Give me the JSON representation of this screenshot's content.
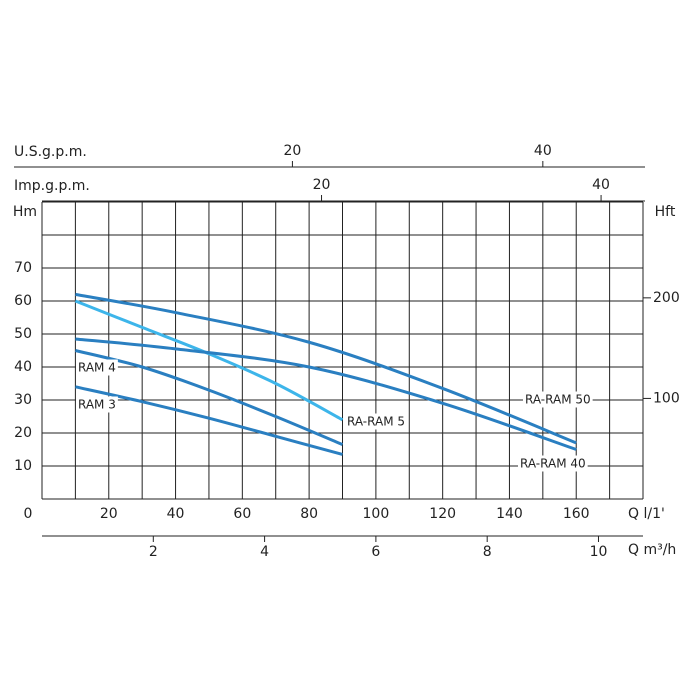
{
  "chart_data": {
    "type": "line",
    "y_label": "Hm",
    "y2_label": "Hft",
    "x_label": "Q l/1'",
    "xlim": [
      0,
      180
    ],
    "xticks": [
      0,
      20,
      40,
      60,
      80,
      100,
      120,
      140,
      160
    ],
    "xgrid": [
      0,
      10,
      20,
      30,
      40,
      50,
      60,
      70,
      80,
      90,
      100,
      110,
      120,
      130,
      140,
      150,
      160,
      170,
      180
    ],
    "ylim": [
      0,
      90
    ],
    "yticks": [
      10,
      20,
      30,
      40,
      50,
      60,
      70
    ],
    "ygrid": [
      0,
      10,
      20,
      30,
      40,
      50,
      60,
      70,
      80,
      90
    ],
    "y2lim": [
      0,
      295.3
    ],
    "y2ticks": [
      100,
      200
    ],
    "top_axes": [
      {
        "label": "U.S.g.p.m.",
        "xlim": [
          0,
          48
        ],
        "xticks": [
          20,
          40
        ]
      },
      {
        "label": "Imp.g.p.m.",
        "xlim": [
          0,
          43
        ],
        "xticks": [
          20,
          40
        ]
      }
    ],
    "bottom_axis": {
      "label": "Q m³/h",
      "xlim": [
        0,
        10.8
      ],
      "xticks": [
        2,
        4,
        6,
        8,
        10
      ]
    },
    "series": [
      {
        "name": "RAM 4",
        "color": "#2a7fc1",
        "x": [
          10,
          30,
          50,
          70,
          90
        ],
        "values": [
          45,
          40,
          33,
          25,
          16.5
        ]
      },
      {
        "name": "RAM 3",
        "color": "#2a7fc1",
        "x": [
          10,
          30,
          50,
          70,
          90
        ],
        "values": [
          34,
          29.5,
          24.5,
          19,
          13.5
        ]
      },
      {
        "name": "RA-RAM 5",
        "color": "#3db5ea",
        "x": [
          10,
          30,
          50,
          70,
          90
        ],
        "values": [
          60,
          52,
          44,
          35,
          24
        ]
      },
      {
        "name": "RA-RAM 50",
        "color": "#2a7fc1",
        "x": [
          10,
          40,
          80,
          120,
          160
        ],
        "values": [
          62,
          56.5,
          47.5,
          33.5,
          17
        ]
      },
      {
        "name": "RA-RAM 40",
        "color": "#2a7fc1",
        "x": [
          10,
          40,
          80,
          120,
          160
        ],
        "values": [
          48.5,
          45.5,
          40,
          29,
          15
        ]
      }
    ]
  }
}
